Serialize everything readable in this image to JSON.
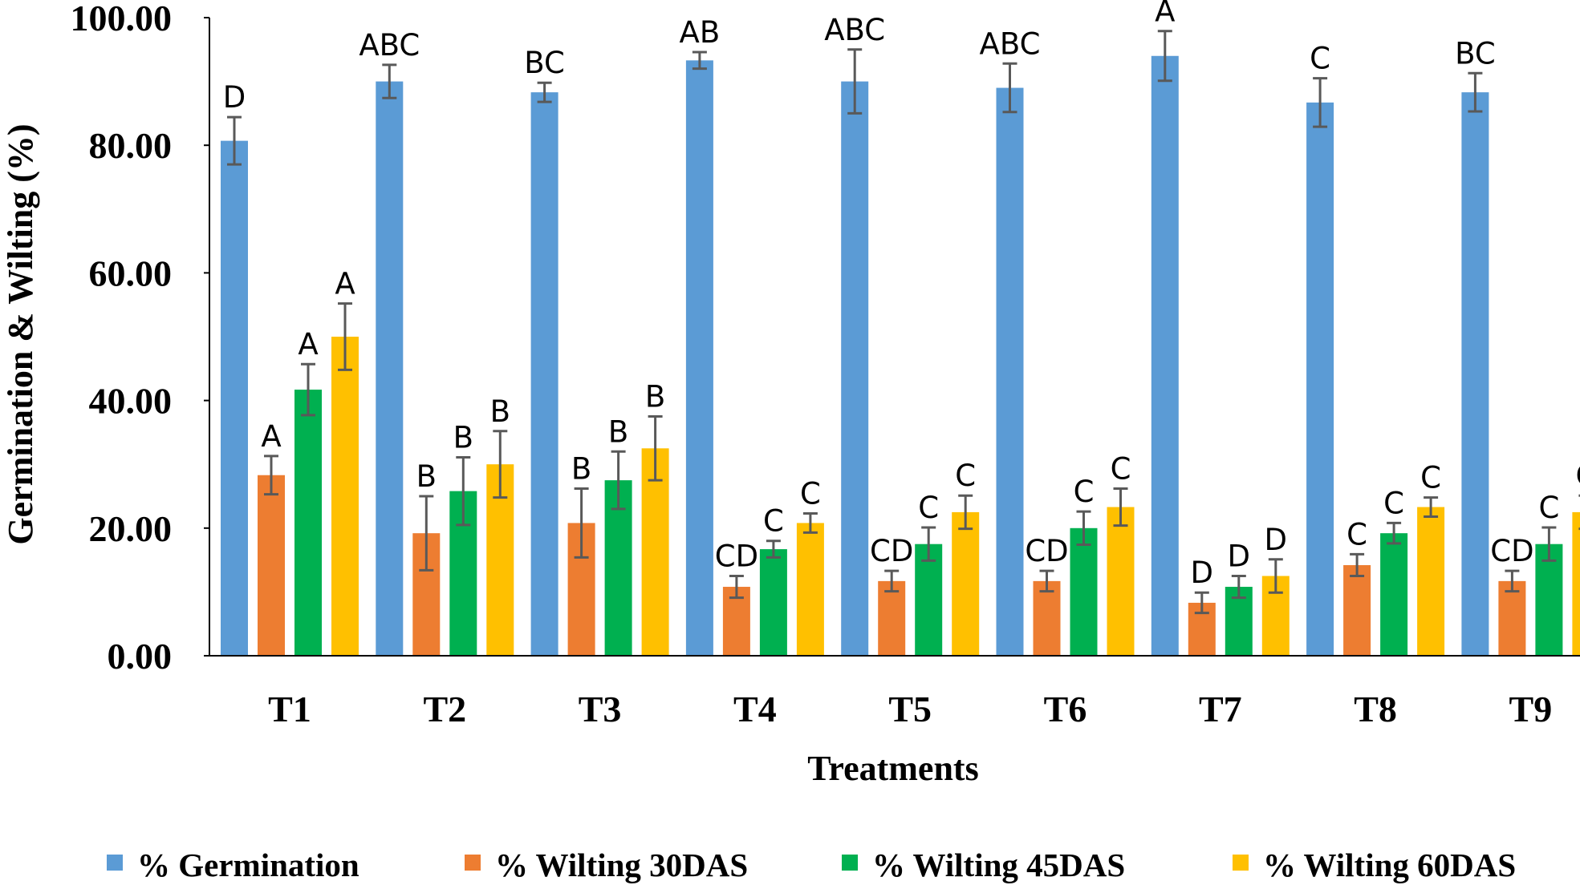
{
  "chart_data": {
    "type": "bar",
    "title": "",
    "xlabel": "Treatments",
    "ylabel": "Germination & Wilting (%)",
    "ylim": [
      0,
      100
    ],
    "yticks": [
      "0.00",
      "20.00",
      "40.00",
      "60.00",
      "80.00",
      "100.00"
    ],
    "categories": [
      "T1",
      "T2",
      "T3",
      "T4",
      "T5",
      "T6",
      "T7",
      "T8",
      "T9"
    ],
    "legend_position": "bottom",
    "series": [
      {
        "name": "% Germination",
        "color": "#5b9bd5",
        "values": [
          80.7,
          90.0,
          88.3,
          93.3,
          90.0,
          89.0,
          94.0,
          86.7,
          88.3
        ],
        "errors": [
          3.7,
          2.6,
          1.5,
          1.3,
          5.0,
          3.8,
          3.9,
          3.8,
          3.0
        ],
        "labels": [
          "D",
          "ABC",
          "BC",
          "AB",
          "ABC",
          "ABC",
          "A",
          "C",
          "BC"
        ]
      },
      {
        "name": "% Wilting 30DAS",
        "color": "#ed7d31",
        "values": [
          28.3,
          19.2,
          20.8,
          10.8,
          11.7,
          11.7,
          8.3,
          14.2,
          11.7
        ],
        "errors": [
          3.0,
          5.8,
          5.4,
          1.7,
          1.6,
          1.6,
          1.6,
          1.7,
          1.6
        ],
        "labels": [
          "A",
          "B",
          "B",
          "CD",
          "CD",
          "CD",
          "D",
          "C",
          "CD"
        ]
      },
      {
        "name": "% Wilting 45DAS",
        "color": "#00b050",
        "values": [
          41.7,
          25.8,
          27.5,
          16.7,
          17.5,
          20.0,
          10.8,
          19.2,
          17.5
        ],
        "errors": [
          4.0,
          5.3,
          4.5,
          1.3,
          2.6,
          2.6,
          1.7,
          1.6,
          2.6
        ],
        "labels": [
          "A",
          "B",
          "B",
          "C",
          "C",
          "C",
          "D",
          "C",
          "C"
        ]
      },
      {
        "name": "% Wilting 60DAS",
        "color": "#ffc000",
        "values": [
          50.0,
          30.0,
          32.5,
          20.8,
          22.5,
          23.3,
          12.5,
          23.3,
          22.5
        ],
        "errors": [
          5.2,
          5.2,
          5.0,
          1.5,
          2.6,
          2.9,
          2.6,
          1.5,
          2.6
        ],
        "labels": [
          "A",
          "B",
          "B",
          "C",
          "C",
          "C",
          "D",
          "C",
          "C"
        ]
      }
    ]
  }
}
